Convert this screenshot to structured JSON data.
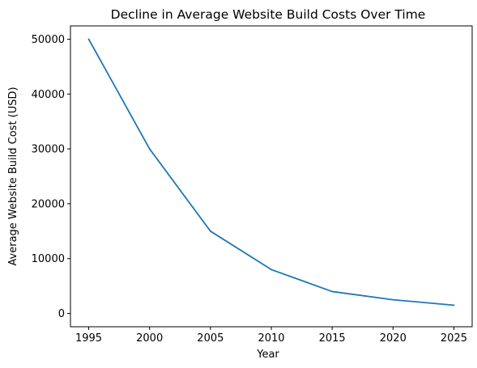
{
  "chart_data": {
    "type": "line",
    "title": "Decline in Average Website Build Costs Over Time",
    "xlabel": "Year",
    "ylabel": "Average Website Build Cost (USD)",
    "x": [
      1995,
      2000,
      2005,
      2010,
      2015,
      2020,
      2025
    ],
    "series": [
      {
        "values": [
          50000,
          30000,
          15000,
          8000,
          4000,
          2500,
          1500
        ],
        "color": "#1f77b4"
      }
    ],
    "xticks": [
      "1995",
      "2000",
      "2005",
      "2010",
      "2015",
      "2020",
      "2025"
    ],
    "yticks": [
      "0",
      "10000",
      "20000",
      "30000",
      "40000",
      "50000"
    ],
    "xlim": [
      1993.5,
      2026.5
    ],
    "ylim": [
      -2425,
      52425
    ],
    "grid": false,
    "legend": "none"
  }
}
